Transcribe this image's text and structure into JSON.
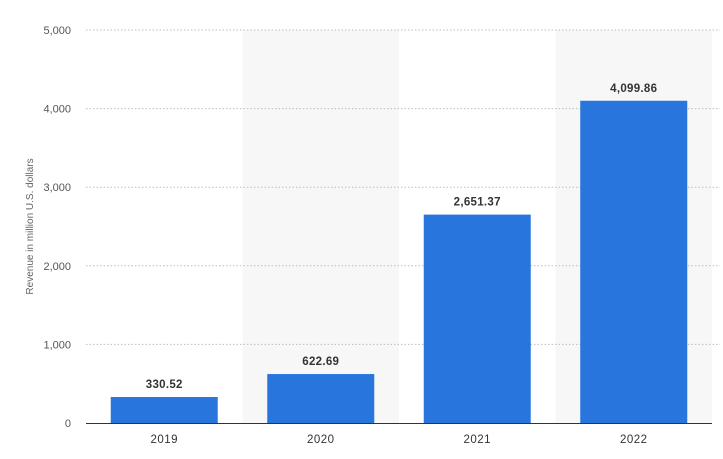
{
  "chart_data": {
    "type": "bar",
    "categories": [
      "2019",
      "2020",
      "2021",
      "2022"
    ],
    "values": [
      330.52,
      622.69,
      2651.37,
      4099.86
    ],
    "value_labels": [
      "330.52",
      "622.69",
      "2,651.37",
      "4,099.86"
    ],
    "ylabel": "Revenue in million U.S. dollars",
    "xlabel": "",
    "ylim": [
      0,
      5000
    ],
    "yticks": [
      0,
      1000,
      2000,
      3000,
      4000,
      5000
    ],
    "ytick_labels": [
      "0",
      "1,000",
      "2,000",
      "3,000",
      "4,000",
      "5,000"
    ],
    "grid": true,
    "bar_color": "#2876dd",
    "band_color": "#f7f7f7"
  }
}
